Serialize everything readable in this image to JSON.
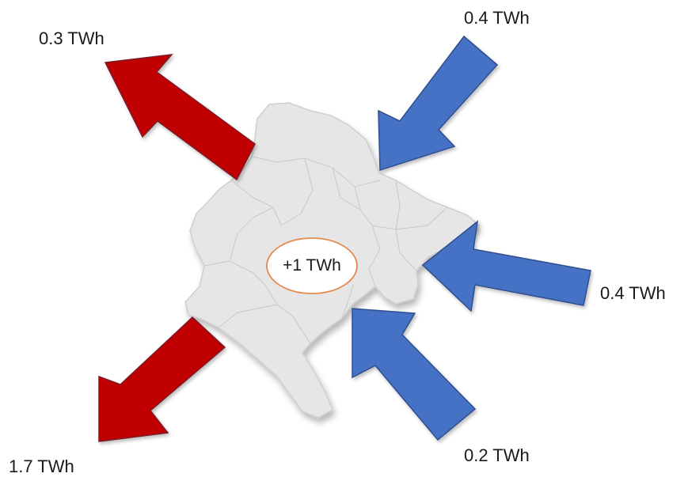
{
  "center_balance": "+1 TWh",
  "flows": {
    "export_northwest": {
      "value": "0.3 TWh",
      "direction": "export"
    },
    "export_southwest": {
      "value": "1.7 TWh",
      "direction": "export"
    },
    "import_northeast": {
      "value": "0.4 TWh",
      "direction": "import"
    },
    "import_east": {
      "value": "0.4 TWh",
      "direction": "import"
    },
    "import_south": {
      "value": "0.2 TWh",
      "direction": "import"
    }
  },
  "colors": {
    "export": "#c00000",
    "import": "#4472c4",
    "map_fill": "#e6e6e6",
    "map_border": "#cfcfcf",
    "balance_ring": "#e58a4e"
  }
}
